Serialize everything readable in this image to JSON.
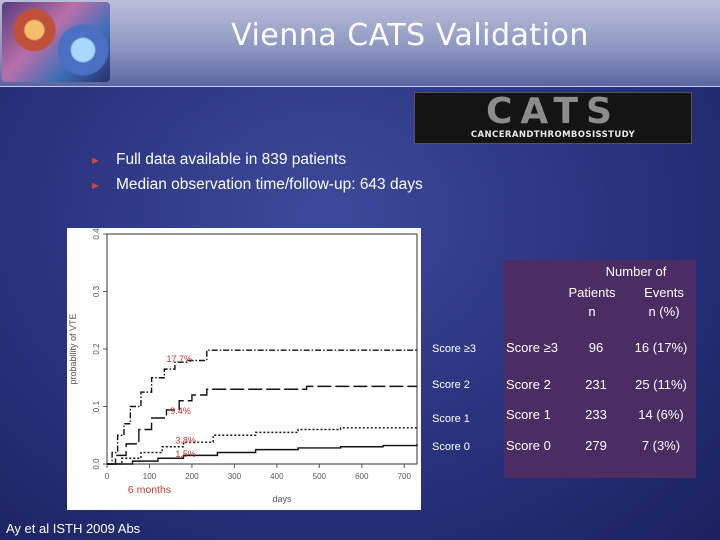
{
  "slide": {
    "title": "Vienna CATS Validation",
    "logo_main": "CATS",
    "logo_sub": "CANCERANDTHROMBOSISSTUDY",
    "citation": "Ay et al ISTH 2009 Abs"
  },
  "bullets": [
    "Full data available in 839 patients",
    "Median observation time/follow-up: 643 days"
  ],
  "chart_data": {
    "type": "line",
    "xlabel": "days",
    "ylabel": "probability of VTE",
    "xlim": [
      0,
      730
    ],
    "ylim": [
      0,
      0.4
    ],
    "x_ticks": [
      "0",
      "100",
      "200",
      "300",
      "400",
      "500",
      "600",
      "700"
    ],
    "y_ticks": [
      "0.0",
      "0.1",
      "0.2",
      "0.3",
      "0.4"
    ],
    "annotations": [
      "17.7%",
      "9.4%",
      "3.8%",
      "1.5%",
      "6 months"
    ],
    "series": [
      {
        "name": "Score ≥3",
        "style": "dash-dot",
        "points": [
          [
            0,
            0
          ],
          [
            12,
            0.02
          ],
          [
            25,
            0.05
          ],
          [
            40,
            0.07
          ],
          [
            55,
            0.1
          ],
          [
            80,
            0.125
          ],
          [
            105,
            0.15
          ],
          [
            135,
            0.165
          ],
          [
            160,
            0.177
          ],
          [
            190,
            0.18
          ],
          [
            235,
            0.198
          ],
          [
            730,
            0.198
          ]
        ]
      },
      {
        "name": "Score 2",
        "style": "long-dash",
        "points": [
          [
            0,
            0
          ],
          [
            20,
            0.015
          ],
          [
            45,
            0.035
          ],
          [
            75,
            0.06
          ],
          [
            105,
            0.08
          ],
          [
            140,
            0.094
          ],
          [
            170,
            0.11
          ],
          [
            200,
            0.12
          ],
          [
            235,
            0.13
          ],
          [
            420,
            0.13
          ],
          [
            470,
            0.135
          ],
          [
            730,
            0.135
          ]
        ]
      },
      {
        "name": "Score 1",
        "style": "dotted",
        "points": [
          [
            0,
            0
          ],
          [
            35,
            0.01
          ],
          [
            80,
            0.02
          ],
          [
            130,
            0.03
          ],
          [
            180,
            0.038
          ],
          [
            250,
            0.05
          ],
          [
            350,
            0.055
          ],
          [
            450,
            0.06
          ],
          [
            550,
            0.063
          ],
          [
            730,
            0.065
          ]
        ]
      },
      {
        "name": "Score 0",
        "style": "solid",
        "points": [
          [
            0,
            0
          ],
          [
            60,
            0.005
          ],
          [
            120,
            0.01
          ],
          [
            180,
            0.015
          ],
          [
            260,
            0.02
          ],
          [
            350,
            0.025
          ],
          [
            450,
            0.028
          ],
          [
            550,
            0.03
          ],
          [
            650,
            0.032
          ],
          [
            730,
            0.035
          ]
        ]
      }
    ]
  },
  "table": {
    "header_number_of": "Number of",
    "col_patients": "Patients",
    "col_patients_unit": "n",
    "col_events": "Events",
    "col_events_unit": "n (%)",
    "rows": [
      {
        "score": "Score ≥3",
        "patients": "96",
        "events": "16 (17%)"
      },
      {
        "score": "Score 2",
        "patients": "231",
        "events": "25 (11%)"
      },
      {
        "score": "Score 1",
        "patients": "233",
        "events": "14 (6%)"
      },
      {
        "score": "Score 0",
        "patients": "279",
        "events": "7 (3%)"
      }
    ]
  },
  "legend_labels": [
    "Score ≥3",
    "Score 2",
    "Score 1",
    "Score 0"
  ]
}
